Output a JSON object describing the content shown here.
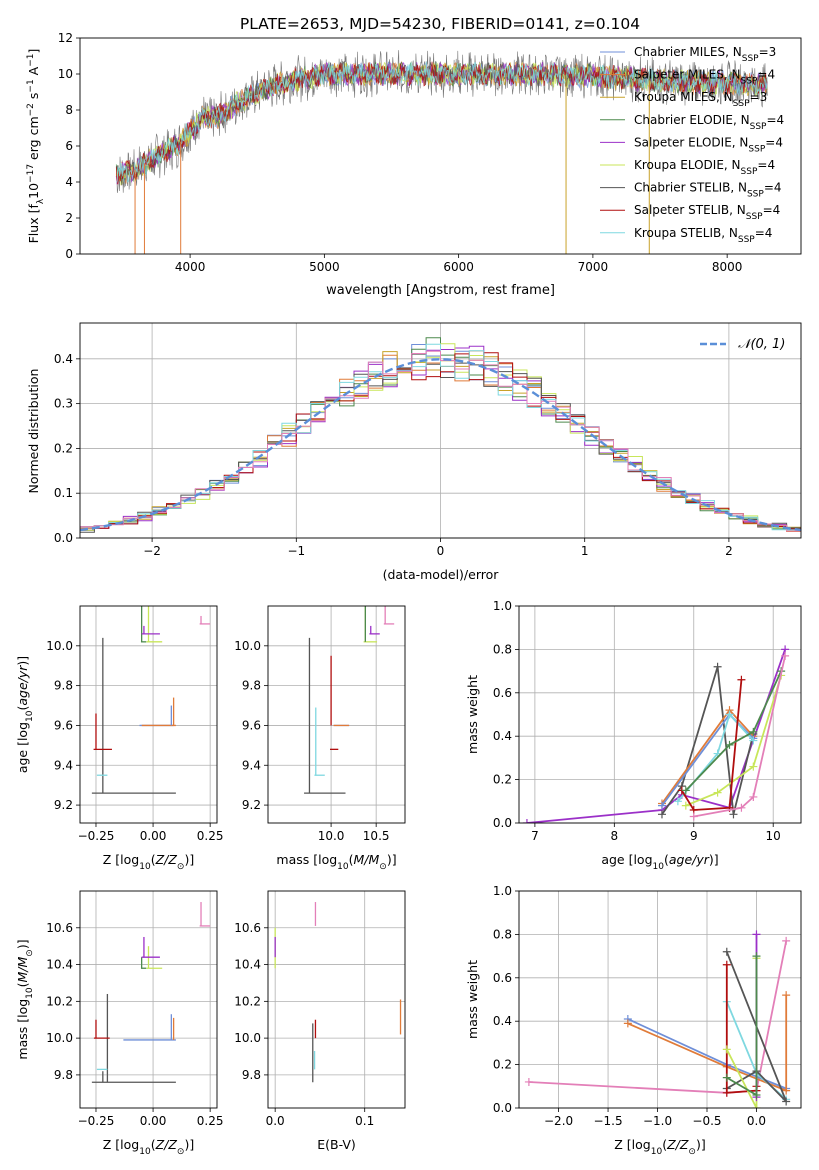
{
  "figure_title": "PLATE=2653, MJD=54230, FIBERID=0141, z=0.104",
  "colors": {
    "chabrier_miles": "#6f8fd8",
    "salpeter_miles": "#e07b39",
    "kroupa_miles": "#c8a22a",
    "chabrier_elodie": "#4d8a4d",
    "salpeter_elodie": "#9b30c8",
    "kroupa_elodie": "#c8e65a",
    "chabrier_stelib": "#555555",
    "salpeter_stelib": "#b00e0e",
    "kroupa_stelib": "#7fd8e0",
    "pink": "#e37fb8",
    "normal": "#5b8fd8"
  },
  "chart_data": [
    {
      "id": "spectrum",
      "type": "line",
      "title": "PLATE=2653, MJD=54230, FIBERID=0141, z=0.104",
      "xlabel": "wavelength [Angstrom, rest frame]",
      "ylabel": "Flux [f_λ 10^-17 erg cm^-2 s^-1 A^-1]",
      "xlim": [
        3180,
        8550
      ],
      "ylim": [
        0,
        12
      ],
      "xticks": [
        "4000",
        "5000",
        "6000",
        "7000",
        "8000"
      ],
      "yticks": [
        "0",
        "2",
        "4",
        "6",
        "8",
        "10",
        "12"
      ],
      "legend_position": "right",
      "legend": [
        {
          "name": "Chabrier MILES, N_SSP=3",
          "color_key": "chabrier_miles"
        },
        {
          "name": "Salpeter MILES, N_SSP=4",
          "color_key": "salpeter_miles"
        },
        {
          "name": "Kroupa MILES, N_SSP=3",
          "color_key": "kroupa_miles"
        },
        {
          "name": "Chabrier ELODIE, N_SSP=4",
          "color_key": "chabrier_elodie"
        },
        {
          "name": "Salpeter ELODIE, N_SSP=4",
          "color_key": "salpeter_elodie"
        },
        {
          "name": "Kroupa ELODIE, N_SSP=4",
          "color_key": "kroupa_elodie"
        },
        {
          "name": "Chabrier STELIB, N_SSP=4",
          "color_key": "chabrier_stelib"
        },
        {
          "name": "Salpeter STELIB, N_SSP=4",
          "color_key": "salpeter_stelib"
        },
        {
          "name": "Kroupa STELIB, N_SSP=4",
          "color_key": "kroupa_stelib"
        }
      ],
      "data_color": "#777777",
      "continuum": {
        "x": [
          3450,
          3600,
          3650,
          3750,
          3900,
          4000,
          4100,
          4200,
          4400,
          4600,
          4800,
          5000,
          5200,
          5500,
          6000,
          6500,
          7000,
          7500,
          8000,
          8300
        ],
        "y": [
          4.4,
          4.7,
          5.0,
          5.4,
          6.0,
          6.8,
          7.6,
          7.6,
          8.6,
          9.3,
          9.7,
          10.0,
          10.0,
          10.0,
          10.0,
          10.0,
          9.9,
          9.6,
          9.5,
          9.4
        ]
      },
      "spikes": [
        {
          "x": 3590,
          "y": 0
        },
        {
          "x": 3660,
          "y": 0
        },
        {
          "x": 3930,
          "y": 0
        },
        {
          "x": 6800,
          "y": 0
        },
        {
          "x": 7420,
          "y": 0
        }
      ]
    },
    {
      "id": "residuals",
      "type": "histogram",
      "xlabel": "(data-model)/error",
      "ylabel": "Normed distribution",
      "xlim": [
        -2.5,
        2.5
      ],
      "ylim": [
        0,
        0.48
      ],
      "xticks": [
        "−2",
        "−1",
        "0",
        "1",
        "2"
      ],
      "yticks": [
        "0.0",
        "0.1",
        "0.2",
        "0.3",
        "0.4"
      ],
      "bin_width": 0.1,
      "legend": [
        {
          "name": "𝒩(0, 1)",
          "style": "dashed",
          "color_key": "normal"
        }
      ],
      "series_colors": [
        "chabrier_miles",
        "salpeter_miles",
        "kroupa_miles",
        "chabrier_elodie",
        "salpeter_elodie",
        "kroupa_elodie",
        "chabrier_stelib",
        "salpeter_stelib",
        "kroupa_stelib",
        "pink"
      ]
    },
    {
      "id": "age_vs_Z",
      "type": "errorbar",
      "xlabel": "Z [log10(Z/Z☉)]",
      "ylabel": "age  [log10(age/yr)]",
      "xlim": [
        -0.32,
        0.28
      ],
      "ylim": [
        9.11,
        10.2
      ],
      "xticks": [
        "−0.25",
        "0.00",
        "0.25"
      ],
      "yticks": [
        "9.2",
        "9.4",
        "9.6",
        "9.8",
        "10.0"
      ],
      "points": [
        {
          "x": -0.22,
          "y": 9.26,
          "xerr": 0.32,
          "yerr": 0.78,
          "c": "chabrier_stelib"
        },
        {
          "x": -0.24,
          "y": 9.35,
          "xerr": 0.04,
          "yerr": 0.0,
          "c": "kroupa_stelib"
        },
        {
          "x": -0.25,
          "y": 9.48,
          "xerr": 0.07,
          "yerr": 0.18,
          "c": "salpeter_stelib"
        },
        {
          "x": -0.04,
          "y": 9.6,
          "xerr": 0.13,
          "yerr": 0.0,
          "c": "chabrier_miles"
        },
        {
          "x": -0.03,
          "y": 9.6,
          "xerr": 0.13,
          "yerr": 0.0,
          "c": "salpeter_miles"
        },
        {
          "x": 0.08,
          "y": 9.6,
          "xerr": 0.0,
          "yerr": 0.1,
          "c": "chabrier_miles"
        },
        {
          "x": 0.09,
          "y": 9.6,
          "xerr": 0.0,
          "yerr": 0.14,
          "c": "salpeter_miles"
        },
        {
          "x": -0.02,
          "y": 10.02,
          "xerr": 0.06,
          "yerr": 0.18,
          "c": "kroupa_elodie"
        },
        {
          "x": -0.05,
          "y": 10.02,
          "xerr": 0.02,
          "yerr": 0.18,
          "c": "chabrier_elodie"
        },
        {
          "x": -0.04,
          "y": 10.06,
          "xerr": 0.07,
          "yerr": 0.04,
          "c": "salpeter_elodie"
        },
        {
          "x": 0.21,
          "y": 10.11,
          "xerr": 0.04,
          "yerr": 0.04,
          "c": "pink"
        }
      ]
    },
    {
      "id": "age_vs_mass",
      "type": "errorbar",
      "xlabel": "mass [log10(M/M☉)]",
      "ylabel": "",
      "xlim": [
        9.3,
        10.82
      ],
      "ylim": [
        9.11,
        10.2
      ],
      "xticks": [
        "10.0",
        "10.5"
      ],
      "yticks": [
        "9.2",
        "9.4",
        "9.6",
        "9.8",
        "10.0"
      ],
      "points": [
        {
          "x": 9.76,
          "y": 9.26,
          "xerr": 0.4,
          "yerr": 0.78,
          "c": "chabrier_stelib"
        },
        {
          "x": 9.83,
          "y": 9.35,
          "xerr": 0.1,
          "yerr": 0.34,
          "c": "kroupa_stelib"
        },
        {
          "x": 10.0,
          "y": 9.48,
          "xerr": 0.08,
          "yerr": 0.0,
          "c": "salpeter_stelib"
        },
        {
          "x": 10.0,
          "y": 9.6,
          "xerr": 0.0,
          "yerr": 0.35,
          "c": "salpeter_stelib"
        },
        {
          "x": 10.05,
          "y": 9.6,
          "xerr": 0.15,
          "yerr": 0.0,
          "c": "chabrier_miles"
        },
        {
          "x": 10.05,
          "y": 9.6,
          "xerr": 0.15,
          "yerr": 0.0,
          "c": "salpeter_miles"
        },
        {
          "x": 10.38,
          "y": 10.02,
          "xerr": 0.13,
          "yerr": 0.18,
          "c": "kroupa_elodie"
        },
        {
          "x": 10.38,
          "y": 10.02,
          "xerr": 0.0,
          "yerr": 0.18,
          "c": "chabrier_elodie"
        },
        {
          "x": 10.44,
          "y": 10.06,
          "xerr": 0.1,
          "yerr": 0.04,
          "c": "salpeter_elodie"
        },
        {
          "x": 10.6,
          "y": 10.11,
          "xerr": 0.1,
          "yerr": 0.1,
          "c": "pink"
        }
      ]
    },
    {
      "id": "weight_vs_age",
      "type": "line",
      "xlabel": "age  [log10(age/yr)]",
      "ylabel": "mass weight",
      "xlim": [
        6.8,
        10.35
      ],
      "ylim": [
        0,
        1.0
      ],
      "xticks": [
        "7",
        "8",
        "9",
        "10"
      ],
      "yticks": [
        "0.0",
        "0.2",
        "0.4",
        "0.6",
        "0.8",
        "1.0"
      ],
      "series": [
        {
          "c": "salpeter_elodie",
          "x": [
            6.9,
            8.6,
            8.85,
            9.45,
            10.15
          ],
          "y": [
            0.0,
            0.06,
            0.13,
            0.07,
            0.8
          ]
        },
        {
          "c": "chabrier_stelib",
          "x": [
            8.6,
            8.85,
            9.3,
            9.5,
            9.75
          ],
          "y": [
            0.04,
            0.17,
            0.72,
            0.04,
            0.41
          ]
        },
        {
          "c": "salpeter_miles",
          "x": [
            8.6,
            9.45,
            9.75
          ],
          "y": [
            0.09,
            0.52,
            0.4
          ]
        },
        {
          "c": "chabrier_miles",
          "x": [
            8.6,
            9.45,
            9.75
          ],
          "y": [
            0.08,
            0.5,
            0.39
          ]
        },
        {
          "c": "kroupa_stelib",
          "x": [
            8.8,
            9.3,
            9.45,
            9.75
          ],
          "y": [
            0.1,
            0.32,
            0.5,
            0.38
          ]
        },
        {
          "c": "kroupa_elodie",
          "x": [
            8.9,
            9.3,
            9.75,
            10.1
          ],
          "y": [
            0.08,
            0.14,
            0.26,
            0.68
          ]
        },
        {
          "c": "salpeter_stelib",
          "x": [
            8.85,
            9.0,
            9.45,
            9.6
          ],
          "y": [
            0.15,
            0.06,
            0.07,
            0.66
          ]
        },
        {
          "c": "chabrier_elodie",
          "x": [
            8.9,
            9.45,
            9.75,
            10.1
          ],
          "y": [
            0.15,
            0.36,
            0.42,
            0.7
          ]
        },
        {
          "c": "pink",
          "x": [
            9.0,
            9.6,
            9.75,
            10.15
          ],
          "y": [
            0.03,
            0.07,
            0.12,
            0.77
          ]
        }
      ]
    },
    {
      "id": "mass_vs_Z",
      "type": "errorbar",
      "xlabel": "Z [log10(Z/Z☉)]",
      "ylabel": "mass [log10(M/M☉)]",
      "xlim": [
        -0.32,
        0.28
      ],
      "ylim": [
        9.62,
        10.8
      ],
      "xticks": [
        "−0.25",
        "0.00",
        "0.25"
      ],
      "yticks": [
        "9.8",
        "10.0",
        "10.2",
        "10.4",
        "10.6"
      ],
      "points": [
        {
          "x": -0.22,
          "y": 9.76,
          "xerr": 0.32,
          "yerr": 0.06,
          "c": "chabrier_stelib"
        },
        {
          "x": -0.2,
          "y": 9.76,
          "xerr": 0.0,
          "yerr": 0.48,
          "c": "chabrier_stelib"
        },
        {
          "x": -0.24,
          "y": 9.83,
          "xerr": 0.04,
          "yerr": 0.0,
          "c": "kroupa_stelib"
        },
        {
          "x": -0.25,
          "y": 10.0,
          "xerr": 0.06,
          "yerr": 0.1,
          "c": "salpeter_stelib"
        },
        {
          "x": -0.1,
          "y": 9.99,
          "xerr": 0.2,
          "yerr": 0.0,
          "c": "chabrier_miles"
        },
        {
          "x": 0.08,
          "y": 9.99,
          "xerr": 0.0,
          "yerr": 0.14,
          "c": "chabrier_miles"
        },
        {
          "x": 0.09,
          "y": 9.99,
          "xerr": 0.0,
          "yerr": 0.12,
          "c": "salpeter_miles"
        },
        {
          "x": -0.02,
          "y": 10.38,
          "xerr": 0.06,
          "yerr": 0.12,
          "c": "kroupa_elodie"
        },
        {
          "x": -0.05,
          "y": 10.38,
          "xerr": 0.02,
          "yerr": 0.06,
          "c": "chabrier_elodie"
        },
        {
          "x": -0.04,
          "y": 10.44,
          "xerr": 0.07,
          "yerr": 0.11,
          "c": "salpeter_elodie"
        },
        {
          "x": 0.21,
          "y": 10.61,
          "xerr": 0.04,
          "yerr": 0.13,
          "c": "pink"
        }
      ]
    },
    {
      "id": "mass_vs_ebv",
      "type": "errorbar",
      "xlabel": "E(B-V)",
      "ylabel": "",
      "xlim": [
        -0.008,
        0.145
      ],
      "ylim": [
        9.62,
        10.8
      ],
      "xticks": [
        "0.0",
        "0.1"
      ],
      "yticks": [
        "9.8",
        "10.0",
        "10.2",
        "10.4",
        "10.6"
      ],
      "points": [
        {
          "x": 0.0,
          "y": 10.38,
          "xerr": 0.0,
          "yerr": 0.22,
          "c": "kroupa_elodie"
        },
        {
          "x": 0.0,
          "y": 10.44,
          "xerr": 0.0,
          "yerr": 0.11,
          "c": "salpeter_elodie"
        },
        {
          "x": 0.042,
          "y": 9.76,
          "xerr": 0.0,
          "yerr": 0.32,
          "c": "chabrier_stelib"
        },
        {
          "x": 0.044,
          "y": 9.83,
          "xerr": 0.0,
          "yerr": 0.1,
          "c": "kroupa_stelib"
        },
        {
          "x": 0.045,
          "y": 10.0,
          "xerr": 0.0,
          "yerr": 0.1,
          "c": "salpeter_stelib"
        },
        {
          "x": 0.045,
          "y": 10.61,
          "xerr": 0.0,
          "yerr": 0.13,
          "c": "pink"
        },
        {
          "x": 0.14,
          "y": 10.02,
          "xerr": 0.0,
          "yerr": 0.19,
          "c": "salpeter_miles"
        }
      ]
    },
    {
      "id": "weight_vs_Z",
      "type": "line",
      "xlabel": "Z [log10(Z/Z☉)]",
      "ylabel": "mass weight",
      "xlim": [
        -2.4,
        0.45
      ],
      "ylim": [
        0,
        1.0
      ],
      "xticks": [
        "−2.0",
        "−1.5",
        "−1.0",
        "−0.5",
        "0.0"
      ],
      "yticks": [
        "0.0",
        "0.2",
        "0.4",
        "0.6",
        "0.8",
        "1.0"
      ],
      "series": [
        {
          "c": "pink",
          "x": [
            -2.3,
            -0.3,
            0.0,
            0.3
          ],
          "y": [
            0.12,
            0.07,
            0.08,
            0.77
          ]
        },
        {
          "c": "chabrier_miles",
          "x": [
            -1.3,
            -0.3,
            0.3
          ],
          "y": [
            0.41,
            0.2,
            0.09
          ]
        },
        {
          "c": "salpeter_miles",
          "x": [
            -1.3,
            -0.3,
            0.3,
            0.3
          ],
          "y": [
            0.39,
            0.19,
            0.08,
            0.52
          ]
        },
        {
          "c": "kroupa_stelib",
          "x": [
            -0.3,
            0.0,
            0.3
          ],
          "y": [
            0.49,
            0.16,
            0.04
          ]
        },
        {
          "c": "chabrier_stelib",
          "x": [
            -0.3,
            0.0,
            0.3,
            -0.3
          ],
          "y": [
            0.09,
            0.17,
            0.03,
            0.72
          ]
        },
        {
          "c": "salpeter_stelib",
          "x": [
            -0.3,
            -0.3,
            0.0,
            0.0
          ],
          "y": [
            0.66,
            0.07,
            0.08,
            0.1
          ]
        },
        {
          "c": "kroupa_elodie",
          "x": [
            -0.3,
            0.0,
            0.0
          ],
          "y": [
            0.27,
            0.0,
            0.69
          ]
        },
        {
          "c": "salpeter_elodie",
          "x": [
            0.0,
            0.0
          ],
          "y": [
            0.05,
            0.8
          ]
        },
        {
          "c": "chabrier_elodie",
          "x": [
            -0.3,
            0.0,
            0.0
          ],
          "y": [
            0.14,
            0.06,
            0.7
          ]
        }
      ]
    }
  ]
}
